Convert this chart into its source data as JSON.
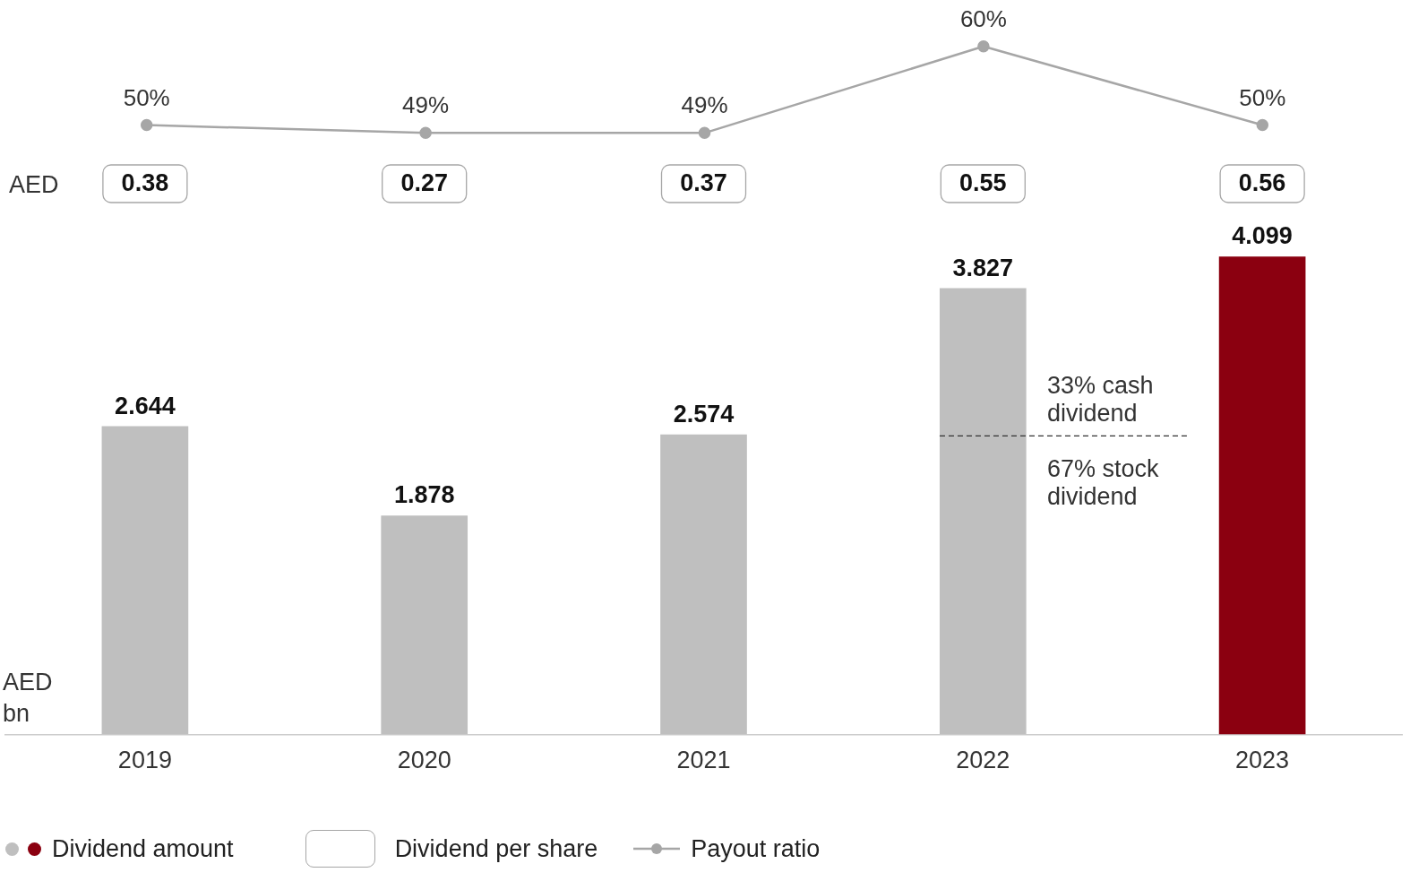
{
  "chart_data": [
    {
      "type": "line",
      "categories": [
        "2019",
        "2020",
        "2021",
        "2022",
        "2023"
      ],
      "series": [
        {
          "name": "Payout ratio",
          "color": "#a6a6a6",
          "values": [
            50,
            49,
            49,
            60,
            50
          ],
          "value_labels": [
            "50%",
            "49%",
            "49%",
            "60%",
            "50%"
          ]
        }
      ],
      "marker": "circle",
      "tick_labels": false,
      "legend": "bottom left"
    },
    {
      "type": "other",
      "series": [
        {
          "name": "Dividend per share",
          "color": "#a6a6a6",
          "values": [
            0.38,
            0.27,
            0.37,
            0.55,
            0.56
          ]
        }
      ],
      "data_labels": true,
      "annotations": [
        "AED"
      ],
      "legend": "bottom left"
    },
    {
      "type": "bar",
      "ylabel": "AED bn",
      "categories": [
        "2019",
        "2020",
        "2021",
        "2022",
        "2023"
      ],
      "series": [
        {
          "name": "Dividend amount",
          "colors": [
            "#bfbfbf",
            "#bfbfbf",
            "#bfbfbf",
            "#bfbfbf",
            "#8b0010"
          ],
          "values": [
            2.644,
            1.878,
            2.574,
            3.827,
            4.099
          ]
        }
      ],
      "data_labels": true,
      "ref_lines": [
        {
          "axis": "y",
          "value": 2.56,
          "label": "33% cash dividend",
          "line_style": "dashed",
          "color": "#333333"
        }
      ],
      "annotations": [
        {
          "text": "67% stock dividend",
          "x": "2022",
          "y": 2.56
        }
      ],
      "grid": false,
      "tick_labels": "x",
      "legend": "bottom left"
    }
  ]
}
